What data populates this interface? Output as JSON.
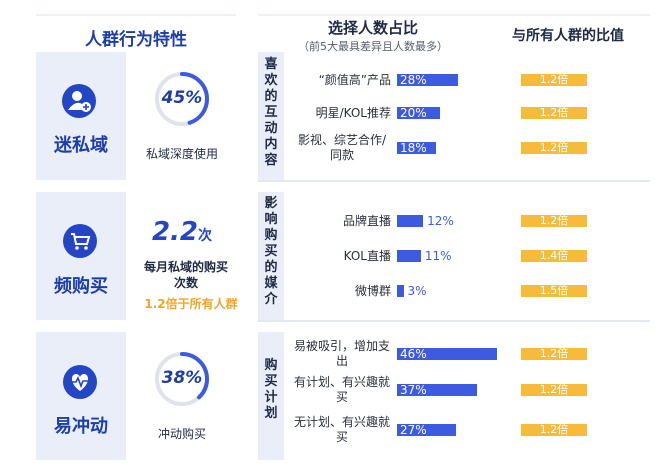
{
  "headers": {
    "col1": "人群行为特性",
    "col2_title": "选择人数占比",
    "col2_sub": "（前5大最具差异且人数最多）",
    "col3": "与所有人群的比值"
  },
  "segments": [
    {
      "name": "迷私域",
      "icon": "user-plus-icon",
      "metric": "45%",
      "metric_value": 45,
      "caption": "私域深度使用"
    },
    {
      "name": "频购买",
      "icon": "shopping-cart-icon",
      "metric_big": "2.2",
      "metric_unit": "次",
      "caption": "每月私域的购买次数",
      "note": "1.2倍于所有人群"
    },
    {
      "name": "易冲动",
      "icon": "heartbeat-icon",
      "metric": "38%",
      "metric_value": 38,
      "caption": "冲动购买"
    }
  ],
  "groups": [
    {
      "label": "喜欢的互动内容"
    },
    {
      "label": "影响购买的媒介"
    },
    {
      "label": "购买计划"
    }
  ],
  "chart_data": {
    "type": "bar",
    "series_name": "选择人数占比",
    "ratio_name": "与所有人群的比值",
    "max_value": 46,
    "rows": [
      {
        "group": 0,
        "category": "“颜值高”产品",
        "value": 28,
        "label": "28%",
        "ratio": "1.2倍"
      },
      {
        "group": 0,
        "category": "明星/KOL推荐",
        "value": 20,
        "label": "20%",
        "ratio": "1.2倍"
      },
      {
        "group": 0,
        "category": "影视、综艺合作/同款",
        "value": 18,
        "label": "18%",
        "ratio": "1.2倍"
      },
      {
        "group": 1,
        "category": "品牌直播",
        "value": 12,
        "label": "12%",
        "ratio": "1.2倍"
      },
      {
        "group": 1,
        "category": "KOL直播",
        "value": 11,
        "label": "11%",
        "ratio": "1.4倍"
      },
      {
        "group": 1,
        "category": "微博群",
        "value": 3,
        "label": "3%",
        "ratio": "1.5倍"
      },
      {
        "group": 2,
        "category": "易被吸引，增加支出",
        "value": 46,
        "label": "46%",
        "ratio": "1.2倍"
      },
      {
        "group": 2,
        "category": "有计划、有兴趣就买",
        "value": 37,
        "label": "37%",
        "ratio": "1.2倍"
      },
      {
        "group": 2,
        "category": "无计划、有兴趣就买",
        "value": 27,
        "label": "27%",
        "ratio": "1.2倍"
      }
    ]
  },
  "colors": {
    "bar": "#3d5be0",
    "ratio": "#f7bb3c",
    "accent": "#1d3ea8",
    "panel": "#e9eef8"
  }
}
